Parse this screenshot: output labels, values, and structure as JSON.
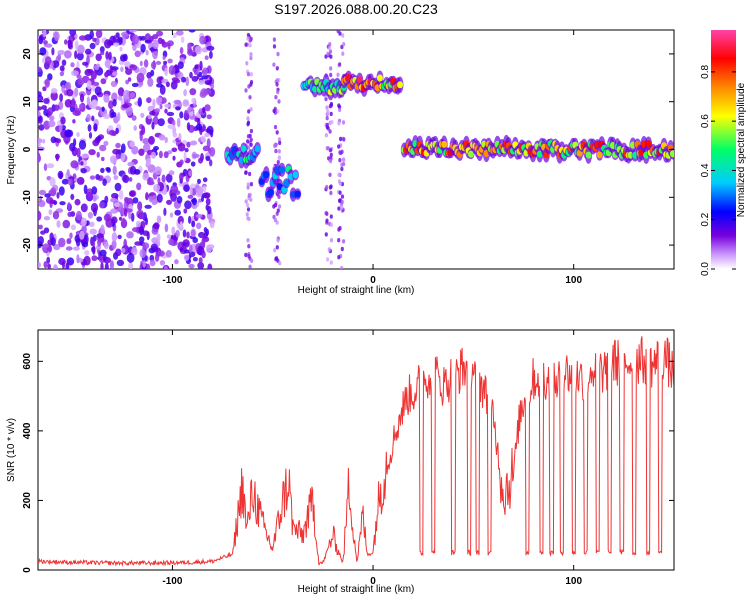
{
  "title": "S197.2026.088.00.20.C23",
  "chart_data": [
    {
      "type": "heatmap",
      "xlabel": "Height of straight line (km)",
      "ylabel": "Frequency (Hz)",
      "xlim": [
        -167,
        150
      ],
      "ylim": [
        -25,
        25
      ],
      "xticks": [
        -100,
        0,
        100
      ],
      "yticks": [
        -20,
        -10,
        0,
        10,
        20
      ],
      "colorbar": {
        "label": "Normalized spectral amplitude",
        "range": [
          0.0,
          0.97
        ],
        "ticks": [
          0.0,
          0.2,
          0.4,
          0.6,
          0.8
        ],
        "tick_labels": [
          "0.0",
          "0.2",
          "0.4",
          "0.6",
          "0.8"
        ],
        "colors": [
          "#ffffff",
          "#cc99ff",
          "#7700dd",
          "#0000ff",
          "#00ccff",
          "#00ff66",
          "#ffff00",
          "#ff8800",
          "#ff0000",
          "#ff44aa"
        ]
      },
      "features": [
        {
          "x_start": -167,
          "x_end": -80,
          "freq": "scattered",
          "amplitude": 0.2
        },
        {
          "x_start": -73,
          "x_end": -57,
          "freq": -1,
          "amplitude": 0.5
        },
        {
          "x_start": -56,
          "x_end": -37,
          "freq": -7,
          "amplitude": 0.45
        },
        {
          "x_start": -35,
          "x_end": -14,
          "freq": 13,
          "amplitude": 0.6
        },
        {
          "x_start": -15,
          "x_end": 14,
          "freq": 14,
          "amplitude": 0.9
        },
        {
          "x_start": 15,
          "x_end": 150,
          "freq": 0,
          "amplitude": 0.85
        }
      ]
    },
    {
      "type": "line",
      "xlabel": "Height of straight line (km)",
      "ylabel": "SNR (10 * v/v)",
      "xlim": [
        -167,
        150
      ],
      "ylim": [
        0,
        690
      ],
      "xticks": [
        -100,
        0,
        100
      ],
      "yticks": [
        0,
        200,
        400,
        600
      ],
      "series": [
        {
          "name": "SNR",
          "color": "#ee3333",
          "x": [
            -167,
            -150,
            -130,
            -110,
            -90,
            -80,
            -70,
            -65,
            -63,
            -60,
            -55,
            -50,
            -45,
            -42,
            -40,
            -35,
            -30,
            -27,
            -25,
            -20,
            -15,
            -12,
            -10,
            -8,
            -5,
            -3,
            0,
            2,
            5,
            8,
            10,
            14,
            17,
            20,
            25,
            30,
            35,
            40,
            45,
            50,
            55,
            60,
            62,
            65,
            70,
            73,
            75,
            80,
            85,
            90,
            95,
            100,
            105,
            110,
            115,
            120,
            125,
            130,
            135,
            140,
            145,
            150
          ],
          "y": [
            25,
            22,
            20,
            20,
            22,
            25,
            45,
            250,
            110,
            230,
            130,
            60,
            200,
            260,
            120,
            100,
            200,
            20,
            20,
            100,
            20,
            250,
            130,
            20,
            160,
            45,
            50,
            170,
            270,
            320,
            370,
            450,
            500,
            510,
            550,
            570,
            530,
            560,
            580,
            580,
            520,
            450,
            350,
            220,
            280,
            440,
            480,
            550,
            560,
            530,
            570,
            560,
            550,
            580,
            570,
            600,
            590,
            610,
            600,
            590,
            620,
            560
          ]
        }
      ],
      "dropouts": {
        "x": [
          24,
          30,
          40,
          48,
          52,
          58,
          77,
          84,
          89,
          94,
          100,
          106,
          112,
          118,
          124,
          130,
          137,
          143
        ],
        "level": 50
      }
    }
  ]
}
